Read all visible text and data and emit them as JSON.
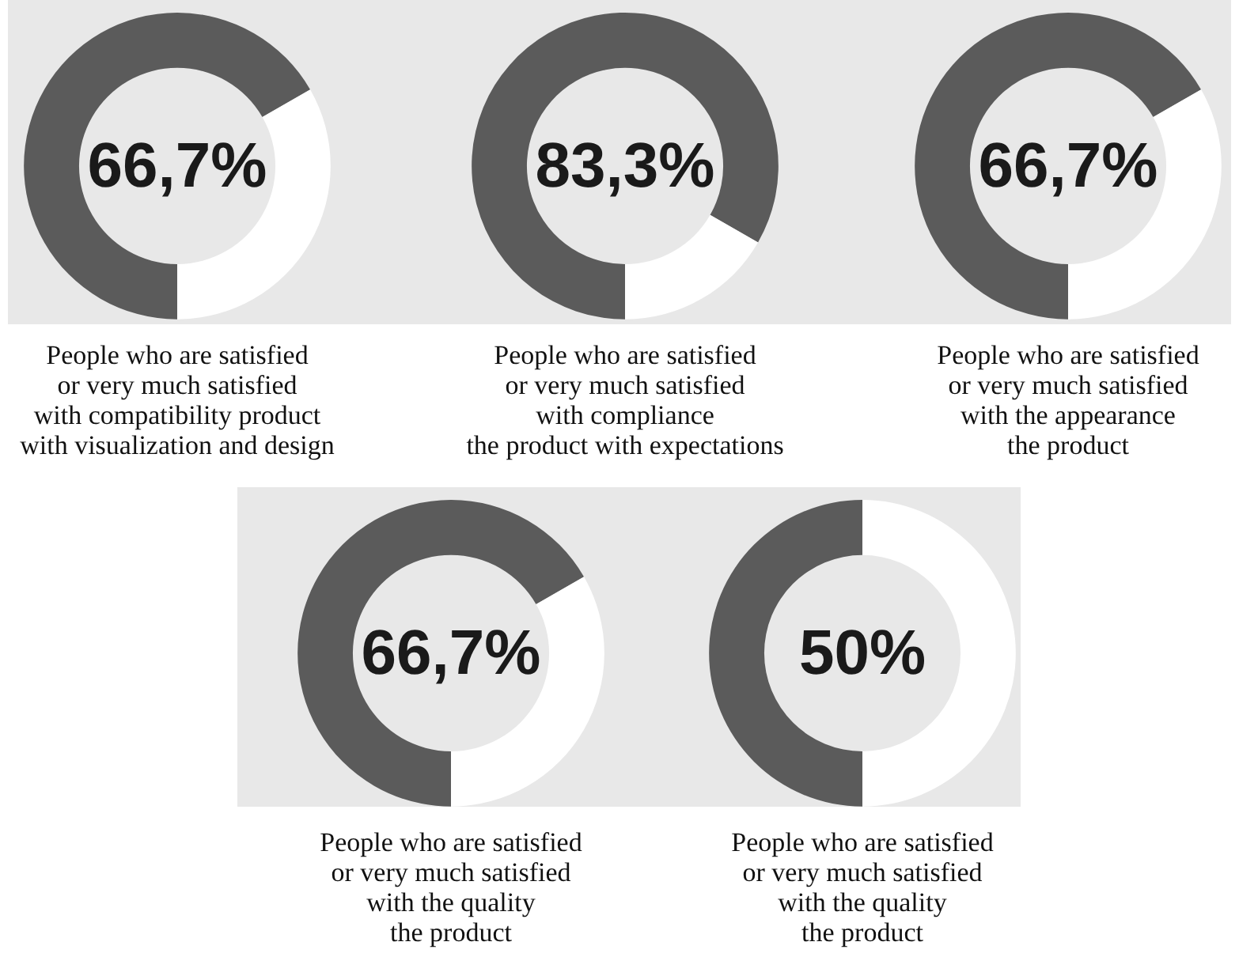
{
  "chart_data": [
    {
      "type": "donut",
      "title": "People who are satisfied\nor very much satisfied\nwith compatibility product\nwith visualization and design",
      "categories": [
        null,
        null
      ],
      "values": [
        66.7,
        33.3
      ],
      "colors": [
        "#5b5b5b",
        "#ffffff"
      ],
      "annotations": [
        "66,7%"
      ]
    },
    {
      "type": "donut",
      "title": "People who are satisfied\nor very much satisfied\nwith compliance\nthe product with expectations",
      "categories": [
        null,
        null
      ],
      "values": [
        83.3,
        16.7
      ],
      "colors": [
        "#5b5b5b",
        "#ffffff"
      ],
      "annotations": [
        "83,3%"
      ]
    },
    {
      "type": "donut",
      "title": "People who are satisfied\nor very much satisfied\nwith the appearance\nthe product",
      "categories": [
        null,
        null
      ],
      "values": [
        66.7,
        33.3
      ],
      "colors": [
        "#5b5b5b",
        "#ffffff"
      ],
      "annotations": [
        "66,7%"
      ]
    },
    {
      "type": "donut",
      "title": "People who are satisfied\nor very much satisfied\nwith the quality\nthe product",
      "categories": [
        null,
        null
      ],
      "values": [
        66.7,
        33.3
      ],
      "colors": [
        "#5b5b5b",
        "#ffffff"
      ],
      "annotations": [
        "66,7%"
      ]
    },
    {
      "type": "donut",
      "title": "People who are satisfied\nor very much satisfied\nwith the quality\nthe product",
      "categories": [
        null,
        null
      ],
      "values": [
        50,
        50
      ],
      "colors": [
        "#5b5b5b",
        "#ffffff"
      ],
      "annotations": [
        "50%"
      ]
    }
  ]
}
